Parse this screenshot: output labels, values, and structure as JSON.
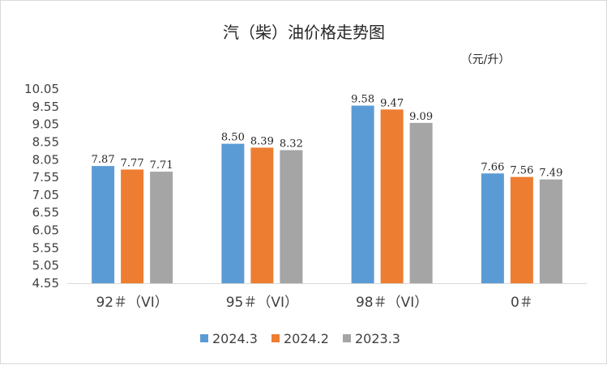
{
  "chart_data": {
    "type": "bar",
    "title": "汽（柴）油价格走势图",
    "unit": "（元/升）",
    "categories": [
      "92＃（VI）",
      "95＃（VI）",
      "98＃（VI）",
      "0＃"
    ],
    "series": [
      {
        "name": "2024.3",
        "color": "#5b9bd5",
        "values": [
          7.87,
          8.5,
          9.58,
          7.66
        ]
      },
      {
        "name": "2024.2",
        "color": "#ed7d31",
        "values": [
          7.77,
          8.39,
          9.47,
          7.56
        ]
      },
      {
        "name": "2023.3",
        "color": "#a5a5a5",
        "values": [
          7.71,
          8.32,
          9.09,
          7.49
        ]
      }
    ],
    "ylim": [
      4.55,
      10.05
    ],
    "yticks": [
      "10.05",
      "9.55",
      "9.05",
      "8.55",
      "8.05",
      "7.55",
      "7.05",
      "6.55",
      "6.05",
      "5.55",
      "5.05",
      "4.55"
    ],
    "legend_position": "bottom",
    "grid": false
  }
}
